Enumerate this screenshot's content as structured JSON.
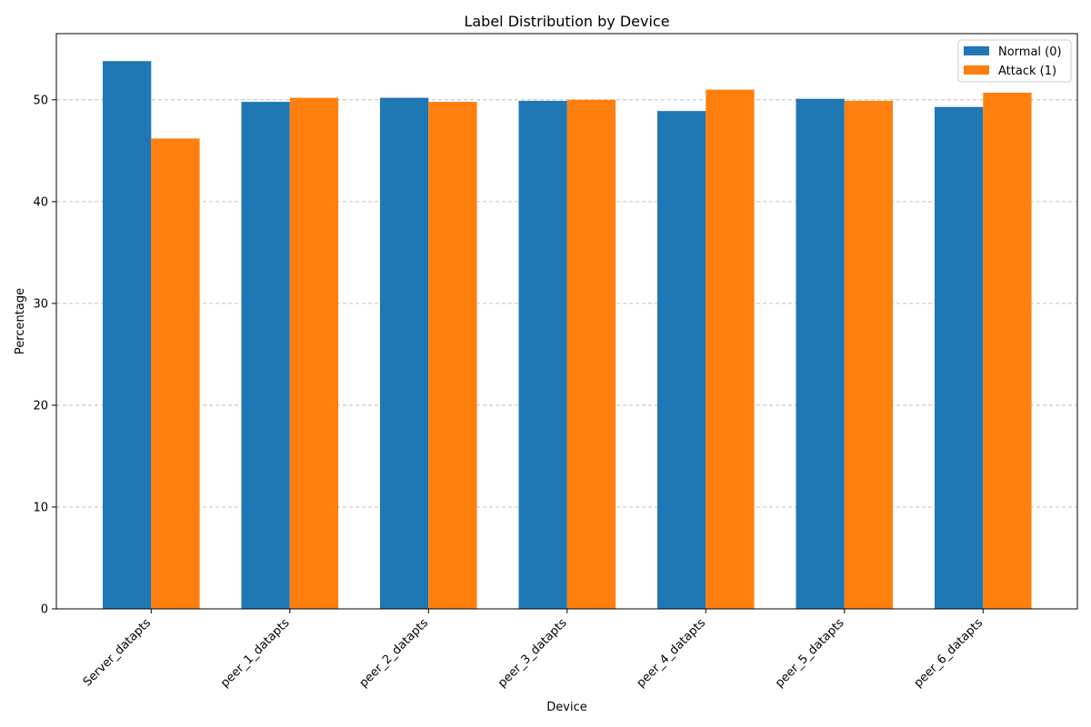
{
  "chart_data": {
    "type": "bar",
    "title": "Label Distribution by Device",
    "xlabel": "Device",
    "ylabel": "Percentage",
    "categories": [
      "Server_datapts",
      "peer_1_datapts",
      "peer_2_datapts",
      "peer_3_datapts",
      "peer_4_datapts",
      "peer_5_datapts",
      "peer_6_datapts"
    ],
    "series": [
      {
        "name": "Normal (0)",
        "color": "#1f77b4",
        "values": [
          53.8,
          49.8,
          50.2,
          49.9,
          48.9,
          50.1,
          49.3
        ]
      },
      {
        "name": "Attack (1)",
        "color": "#ff7f0e",
        "values": [
          46.2,
          50.2,
          49.8,
          50.0,
          51.0,
          49.9,
          50.7
        ]
      }
    ],
    "ylim": [
      0,
      56.5
    ],
    "yticks": [
      0,
      10,
      20,
      30,
      40,
      50
    ],
    "grid": "y-dashed",
    "legend": "top-right"
  }
}
